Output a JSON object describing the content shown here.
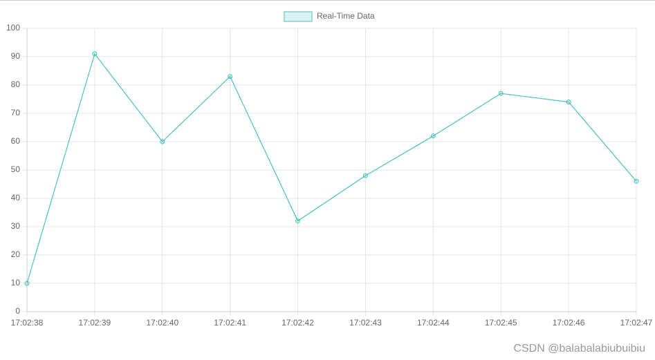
{
  "chart_data": {
    "type": "line",
    "categories": [
      "17:02:38",
      "17:02:39",
      "17:02:40",
      "17:02:41",
      "17:02:42",
      "17:02:43",
      "17:02:44",
      "17:02:45",
      "17:02:46",
      "17:02:47"
    ],
    "series": [
      {
        "name": "Real-Time Data",
        "color": "#4bc0c0",
        "values": [
          10,
          91,
          60,
          83,
          32,
          48,
          62,
          77,
          74,
          46
        ]
      }
    ],
    "ylim": [
      0,
      100
    ],
    "yticks": [
      0,
      10,
      20,
      30,
      40,
      50,
      60,
      70,
      80,
      90,
      100
    ],
    "grid": true,
    "legend": "top"
  },
  "watermark": "CSDN @balabalabiubuibiu"
}
